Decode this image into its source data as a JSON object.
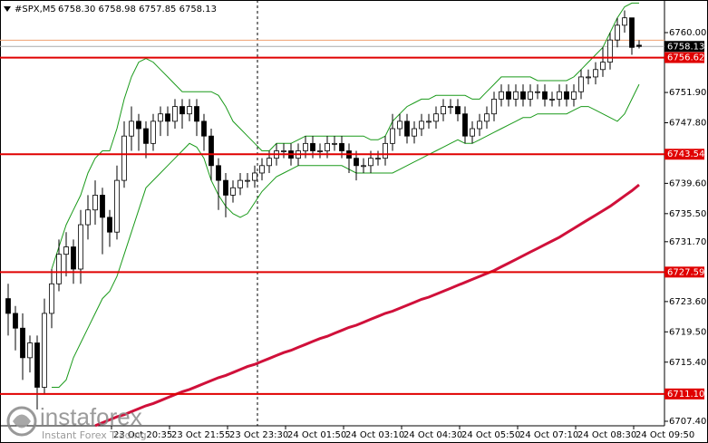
{
  "chart_data": {
    "type": "candlestick",
    "symbol": "#SPX,M5",
    "ohlc_header": "6758.30 6758.98 6757.85 6758.13",
    "bid": 6758.13,
    "ask": 6758.98,
    "ylim": [
      6706.787,
      6764.414
    ],
    "yticks": [
      {
        "value": 6760.0,
        "label": "6760.00"
      },
      {
        "value": 6751.9,
        "label": "6751.90"
      },
      {
        "value": 6747.8,
        "label": "6747.80"
      },
      {
        "value": 6739.6,
        "label": "6739.60"
      },
      {
        "value": 6735.5,
        "label": "6735.50"
      },
      {
        "value": 6731.7,
        "label": "6731.70"
      },
      {
        "value": 6723.6,
        "label": "6723.60"
      },
      {
        "value": 6719.5,
        "label": "6719.50"
      },
      {
        "value": 6715.4,
        "label": "6715.40"
      },
      {
        "value": 6707.4,
        "label": "6707.40"
      }
    ],
    "levels": [
      6756.62,
      6743.54,
      6727.59,
      {
        "value": 6711.1,
        "label": "6711.10"
      }
    ],
    "categories": [
      null,
      null,
      null,
      null,
      null,
      null,
      null,
      null,
      null,
      null,
      null,
      null,
      null,
      null,
      null,
      "23 Oct 20:35",
      null,
      null,
      null,
      null,
      null,
      null,
      null,
      "23 Oct 21:55",
      null,
      null,
      null,
      null,
      null,
      null,
      null,
      "23 Oct 23:30",
      null,
      null,
      null,
      null,
      null,
      null,
      null,
      "24 Oct 01:50",
      null,
      null,
      null,
      null,
      null,
      null,
      null,
      "24 Oct 03:10",
      null,
      null,
      null,
      null,
      null,
      null,
      null,
      "24 Oct 04:30",
      null,
      null,
      null,
      null,
      null,
      null,
      null,
      "24 Oct 05:50",
      null,
      null,
      null,
      null,
      null,
      null,
      null,
      "24 Oct 07:10",
      null,
      null,
      null,
      null,
      null,
      null,
      null,
      "24 Oct 08:30",
      null,
      null,
      null,
      null,
      null,
      null,
      null,
      "24 Oct 09:50"
    ],
    "open": [
      6724,
      6722,
      6720,
      6716,
      6718,
      6712,
      6722,
      6726,
      6730,
      6731,
      6728,
      6734,
      6736,
      6738,
      6735,
      6733,
      6740,
      6746,
      6748,
      6747,
      6745,
      6748,
      6749,
      6748,
      6750,
      6749,
      6750,
      6748,
      6746,
      6742,
      6740,
      6738,
      6739,
      6740,
      6740,
      6741,
      6742,
      6743,
      6744,
      6744,
      6743,
      6744,
      6745,
      6744,
      6744,
      6745,
      6745,
      6744,
      6743,
      6742,
      6742,
      6743,
      6743,
      6745,
      6747,
      6748,
      6746,
      6747,
      6748,
      6748,
      6749,
      6750,
      6750,
      6749,
      6746,
      6747,
      6748,
      6749,
      6751,
      6752,
      6751,
      6752,
      6751,
      6752,
      6752,
      6751,
      6751,
      6752,
      6751,
      6752,
      6754,
      6754,
      6755,
      6756,
      6759,
      6761,
      6762,
      6758.3
    ],
    "high": [
      6726,
      6723,
      6722,
      6719,
      6719,
      6724,
      6728,
      6732,
      6733,
      6732,
      6736,
      6738,
      6740,
      6739,
      6736,
      6742,
      6748,
      6750,
      6749,
      6748,
      6749,
      6750,
      6750,
      6751,
      6751,
      6751,
      6751,
      6749,
      6747,
      6743,
      6741,
      6740,
      6741,
      6741,
      6742,
      6743,
      6744,
      6745,
      6745,
      6745,
      6745,
      6746,
      6746,
      6745,
      6746,
      6746,
      6746,
      6745,
      6744,
      6743,
      6744,
      6744,
      6746,
      6749,
      6749,
      6749,
      6748,
      6749,
      6749,
      6750,
      6751,
      6751,
      6751,
      6750,
      6748,
      6749,
      6750,
      6752,
      6753,
      6753,
      6753,
      6753,
      6753,
      6753,
      6753,
      6752,
      6753,
      6753,
      6753,
      6755,
      6755,
      6756,
      6758,
      6760,
      6762,
      6763,
      6762,
      6758.98
    ],
    "low": [
      6719,
      6717,
      6713,
      6714,
      6709,
      6711,
      6720,
      6725,
      6727,
      6726,
      6726,
      6732,
      6734,
      6730,
      6731,
      6732,
      6739,
      6744,
      6744,
      6743,
      6744,
      6746,
      6746,
      6747,
      6747,
      6748,
      6746,
      6744,
      6740,
      6736,
      6735,
      6737,
      6738,
      6739,
      6739,
      6740,
      6741,
      6742,
      6743,
      6742,
      6742,
      6743,
      6743,
      6743,
      6743,
      6744,
      6743,
      6741,
      6740,
      6741,
      6741,
      6742,
      6742,
      6744,
      6746,
      6745,
      6745,
      6746,
      6747,
      6747,
      6748,
      6749,
      6748,
      6745,
      6745,
      6746,
      6747,
      6748,
      6750,
      6750,
      6750,
      6750,
      6750,
      6751,
      6750,
      6750,
      6750,
      6750,
      6750,
      6751,
      6753,
      6753,
      6754,
      6755,
      6758,
      6760,
      6757,
      6757.85
    ],
    "close": [
      6722,
      6720,
      6716,
      6718,
      6712,
      6722,
      6726,
      6730,
      6731,
      6728,
      6734,
      6736,
      6738,
      6735,
      6733,
      6740,
      6746,
      6748,
      6747,
      6745,
      6748,
      6749,
      6748,
      6750,
      6749,
      6750,
      6748,
      6746,
      6742,
      6740,
      6738,
      6739,
      6740,
      6740,
      6741,
      6742,
      6743,
      6744,
      6744,
      6743,
      6744,
      6745,
      6744,
      6744,
      6745,
      6745,
      6744,
      6743,
      6742,
      6742,
      6743,
      6743,
      6745,
      6747,
      6748,
      6746,
      6747,
      6748,
      6748,
      6749,
      6750,
      6750,
      6749,
      6746,
      6747,
      6748,
      6749,
      6751,
      6752,
      6751,
      6752,
      6751,
      6752,
      6752,
      6751,
      6751,
      6752,
      6751,
      6752,
      6754,
      6754,
      6755,
      6756,
      6759,
      6761,
      6762,
      6758,
      6758.13
    ],
    "series": [
      {
        "color": "#1a9a1a",
        "values": [
          null,
          null,
          null,
          null,
          null,
          null,
          6728,
          6731,
          6734,
          6736,
          6738,
          6741,
          6743,
          6744,
          6744,
          6747,
          6751,
          6754,
          6756,
          6756.5,
          6756,
          6755,
          6754,
          6753,
          6752,
          6752,
          6752,
          6752,
          6752,
          6751.5,
          6750,
          6748,
          6747,
          6746,
          6745,
          6744,
          6744,
          6745,
          6745,
          6745,
          6745.5,
          6746,
          6746,
          6746,
          6746,
          6746,
          6746,
          6746,
          6746,
          6746,
          6745.5,
          6745.5,
          6746,
          6748,
          6749,
          6750,
          6750.5,
          6751,
          6751,
          6751.5,
          6751.5,
          6751.5,
          6751.5,
          6751.5,
          6751,
          6751,
          6752,
          6753,
          6754,
          6754,
          6754,
          6754,
          6754,
          6753.5,
          6753.5,
          6753.5,
          6753.5,
          6753.5,
          6754,
          6755,
          6756,
          6757,
          6758,
          6760,
          6762,
          6763.5,
          6764,
          6764
        ]
      },
      {
        "color": "#1a9a1a",
        "values": [
          null,
          null,
          null,
          null,
          null,
          null,
          6712,
          6712,
          6713,
          6716,
          6718,
          6720,
          6722,
          6724,
          6725,
          6727,
          6730,
          6733,
          6736,
          6739,
          6740,
          6741,
          6742,
          6743,
          6744,
          6745,
          6744.5,
          6743,
          6740,
          6738,
          6736.5,
          6735.5,
          6735,
          6735.5,
          6737,
          6738.5,
          6739.5,
          6740.5,
          6741,
          6741.5,
          6742,
          6742,
          6742,
          6742,
          6742,
          6742,
          6742,
          6741.5,
          6741,
          6741,
          6741,
          6741,
          6741,
          6741,
          6741.5,
          6742,
          6742.5,
          6743,
          6743.5,
          6744,
          6744.5,
          6745,
          6745.5,
          6745,
          6745,
          6745.5,
          6746,
          6746.5,
          6747,
          6747.5,
          6748,
          6748.5,
          6748.5,
          6749,
          6749,
          6749,
          6749,
          6749,
          6749.5,
          6750,
          6750,
          6749.5,
          6749,
          6748.5,
          6748,
          6749,
          6751,
          6753
        ]
      },
      {
        "color": "#d0103a",
        "values": [
          null,
          null,
          null,
          null,
          null,
          null,
          null,
          null,
          null,
          null,
          null,
          null,
          6706.8,
          6707.2,
          6707.6,
          6708.0,
          6708.3,
          6708.7,
          6709.1,
          6709.5,
          6709.8,
          6710.2,
          6710.6,
          6711.0,
          6711.4,
          6711.7,
          6712.1,
          6712.5,
          6712.9,
          6713.3,
          6713.6,
          6714.0,
          6714.4,
          6714.8,
          6715.1,
          6715.5,
          6715.9,
          6716.3,
          6716.7,
          6717.0,
          6717.4,
          6717.8,
          6718.2,
          6718.6,
          6718.9,
          6719.3,
          6719.7,
          6720.1,
          6720.4,
          6720.8,
          6721.2,
          6721.6,
          6722.0,
          6722.3,
          6722.7,
          6723.1,
          6723.5,
          6723.9,
          6724.2,
          6724.6,
          6725.0,
          6725.4,
          6725.8,
          6726.2,
          6726.6,
          6727.0,
          6727.4,
          6727.8,
          6728.3,
          6728.8,
          6729.3,
          6729.8,
          6730.3,
          6730.8,
          6731.3,
          6731.8,
          6732.3,
          6732.9,
          6733.5,
          6734.1,
          6734.7,
          6735.3,
          6735.9,
          6736.5,
          6737.2,
          6737.9,
          6738.6,
          6739.4
        ]
      }
    ],
    "level_color": "#e00000",
    "watermark": {
      "brand": "instaforex",
      "tagline": "Instant Forex Trading"
    }
  }
}
